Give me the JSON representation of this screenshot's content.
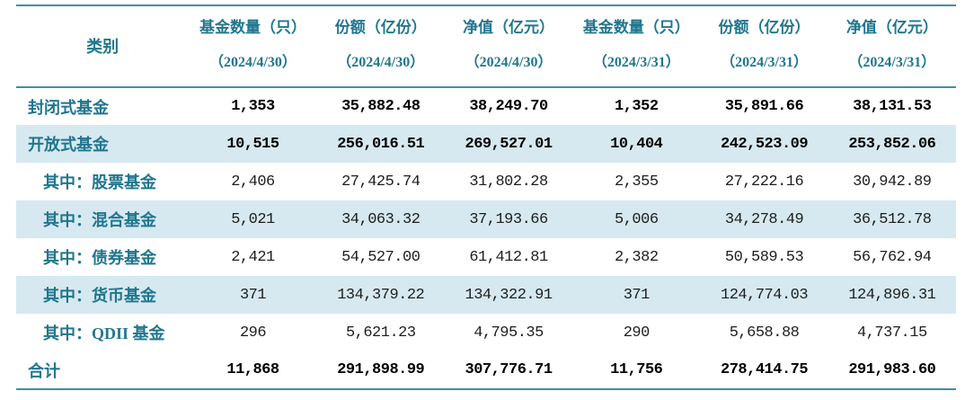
{
  "chart_data": {
    "type": "table",
    "category_column": "类别",
    "columns": [
      {
        "title": "基金数量（只）",
        "date": "（2024/4/30）"
      },
      {
        "title": "份额（亿份）",
        "date": "（2024/4/30）"
      },
      {
        "title": "净值（亿元）",
        "date": "（2024/4/30）"
      },
      {
        "title": "基金数量（只）",
        "date": "（2024/3/31）"
      },
      {
        "title": "份额（亿份）",
        "date": "（2024/3/31）"
      },
      {
        "title": "净值（亿元）",
        "date": "（2024/3/31）"
      }
    ],
    "rows": [
      {
        "category": "封闭式基金",
        "indent": false,
        "emphasis": true,
        "striped": false,
        "values": [
          "1,353",
          "35,882.48",
          "38,249.70",
          "1,352",
          "35,891.66",
          "38,131.53"
        ]
      },
      {
        "category": "开放式基金",
        "indent": false,
        "emphasis": true,
        "striped": true,
        "values": [
          "10,515",
          "256,016.51",
          "269,527.01",
          "10,404",
          "242,523.09",
          "253,852.06"
        ]
      },
      {
        "category": "其中：股票基金",
        "indent": true,
        "emphasis": false,
        "striped": false,
        "values": [
          "2,406",
          "27,425.74",
          "31,802.28",
          "2,355",
          "27,222.16",
          "30,942.89"
        ]
      },
      {
        "category": "其中：混合基金",
        "indent": true,
        "emphasis": false,
        "striped": true,
        "values": [
          "5,021",
          "34,063.32",
          "37,193.66",
          "5,006",
          "34,278.49",
          "36,512.78"
        ]
      },
      {
        "category": "其中：债券基金",
        "indent": true,
        "emphasis": false,
        "striped": false,
        "values": [
          "2,421",
          "54,527.00",
          "61,412.81",
          "2,382",
          "50,589.53",
          "56,762.94"
        ]
      },
      {
        "category": "其中：货币基金",
        "indent": true,
        "emphasis": false,
        "striped": true,
        "values": [
          "371",
          "134,379.22",
          "134,322.91",
          "371",
          "124,774.03",
          "124,896.31"
        ]
      },
      {
        "category": "其中：QDII 基金",
        "indent": true,
        "emphasis": false,
        "striped": false,
        "values": [
          "296",
          "5,621.23",
          "4,795.35",
          "290",
          "5,658.88",
          "4,737.15"
        ]
      },
      {
        "category": "合计",
        "indent": false,
        "emphasis": true,
        "striped": false,
        "values": [
          "11,868",
          "291,898.99",
          "307,776.71",
          "11,756",
          "278,414.75",
          "291,983.60"
        ]
      }
    ]
  },
  "colors": {
    "teal_text": "#21768e",
    "line_color": "#3d8fa7",
    "stripe_bg": "#d6e9f0"
  }
}
